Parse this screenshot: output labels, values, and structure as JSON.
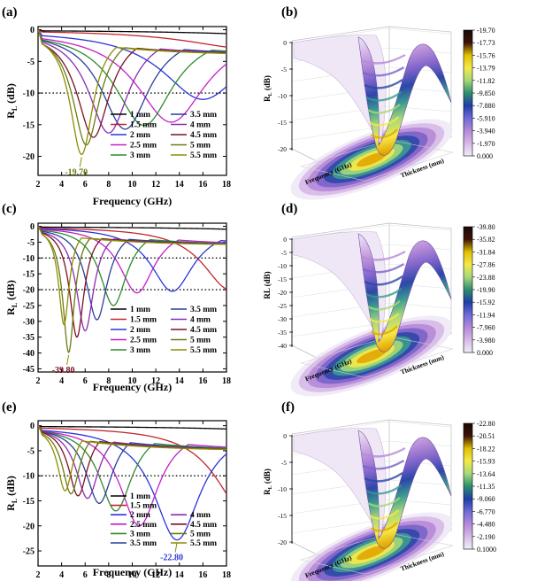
{
  "figure": {
    "description_hidden": false
  },
  "colors": {
    "series": [
      "#000000",
      "#c0272d",
      "#2b35d6",
      "#c21fc9",
      "#2e8b2e",
      "#2a3f9a",
      "#8b2bb5",
      "#7b1022",
      "#6a7a12",
      "#8d8d00"
    ],
    "colorbar": [
      "#1a0a05",
      "#3d1208",
      "#e0c000",
      "#f4e94a",
      "#a6d87a",
      "#2e8e6e",
      "#1f3ea6",
      "#6e6ad9",
      "#b48ad8",
      "#d7b9e8",
      "#eef0f7"
    ],
    "surface_bands": [
      "#efe9f6",
      "#d7b9e8",
      "#b58ad8",
      "#7c63c9",
      "#2d47a8",
      "#3a9b8f",
      "#a6d87a",
      "#f4e94a",
      "#e2a500"
    ],
    "reference_line": "#000000"
  },
  "chart_data": [
    {
      "panel": "(a)",
      "type": "line",
      "xlabel": "Frequency (GHz)",
      "ylabel_main": "R",
      "ylabel_sub": "L",
      "ylabel_unit": "(dB)",
      "xlim": [
        2,
        18
      ],
      "ylim": [
        -23,
        0.5
      ],
      "xticks": [
        "2",
        "4",
        "6",
        "8",
        "10",
        "12",
        "14",
        "16",
        "18"
      ],
      "yticks": [
        "0",
        "-5",
        "-10",
        "-15",
        "-20"
      ],
      "reference_line": -10,
      "min_label": "-19.70",
      "min_point": [
        5.7,
        -19.7
      ],
      "legend_col1": [
        "1 mm",
        "1.5 mm",
        "2 mm",
        "2.5 mm",
        "3 mm"
      ],
      "legend_col2": [
        "3.5 mm",
        "4 mm",
        "4.5 mm",
        "5 mm",
        "5.5 mm"
      ],
      "series": [
        {
          "name": "1 mm",
          "fmin": 30,
          "depth": -1.5,
          "width": 10,
          "tail": 0
        },
        {
          "name": "1.5 mm",
          "fmin": 20,
          "depth": -3.0,
          "width": 6.5,
          "tail": 0
        },
        {
          "name": "2 mm",
          "fmin": 16.0,
          "depth": -11.0,
          "width": 4.2,
          "tail": -4
        },
        {
          "name": "2.5 mm",
          "fmin": 13.3,
          "depth": -14.6,
          "width": 3.6,
          "tail": -4
        },
        {
          "name": "3 mm",
          "fmin": 11.0,
          "depth": -15.1,
          "width": 3.0,
          "tail": -4
        },
        {
          "name": "3.5 mm",
          "fmin": 9.4,
          "depth": -15.7,
          "width": 2.5,
          "tail": -4
        },
        {
          "name": "4 mm",
          "fmin": 8.0,
          "depth": -16.3,
          "width": 2.1,
          "tail": -4
        },
        {
          "name": "4.5 mm",
          "fmin": 6.7,
          "depth": -17.0,
          "width": 1.7,
          "tail": -4
        },
        {
          "name": "5 mm",
          "fmin": 6.1,
          "depth": -18.2,
          "width": 1.4,
          "tail": -4
        },
        {
          "name": "5.5 mm",
          "fmin": 5.7,
          "depth": -19.7,
          "width": 1.2,
          "tail": -4
        }
      ]
    },
    {
      "panel": "(c)",
      "type": "line",
      "xlabel": "Frequency (GHz)",
      "ylabel_main": "R",
      "ylabel_sub": "L",
      "ylabel_unit": "(dB)",
      "xlim": [
        2,
        18
      ],
      "ylim": [
        -46,
        1
      ],
      "xticks": [
        "2",
        "4",
        "6",
        "8",
        "10",
        "12",
        "14",
        "16",
        "18"
      ],
      "yticks": [
        "0",
        "-5",
        "-10",
        "-15",
        "-20",
        "-25",
        "-30",
        "-35",
        "-40",
        "-45"
      ],
      "reference_lines": [
        -10,
        -20
      ],
      "min_label": "-39.80",
      "min_point": [
        4.6,
        -39.8
      ],
      "legend_col1": [
        "1 mm",
        "1.5 mm",
        "2 mm",
        "2.5 mm",
        "3 mm"
      ],
      "legend_col2": [
        "3.5 mm",
        "4 mm",
        "4.5 mm",
        "5 mm",
        "5.5 mm"
      ],
      "series": [
        {
          "name": "1 mm",
          "fmin": 30,
          "depth": -2.5,
          "width": 9,
          "tail": 0
        },
        {
          "name": "1.5 mm",
          "fmin": 18.3,
          "depth": -20.0,
          "width": 2.8,
          "tail": -6
        },
        {
          "name": "2 mm",
          "fmin": 13.4,
          "depth": -20.5,
          "width": 2.2,
          "tail": -6
        },
        {
          "name": "2.5 mm",
          "fmin": 10.4,
          "depth": -21.0,
          "width": 1.8,
          "tail": -6
        },
        {
          "name": "3 mm",
          "fmin": 8.4,
          "depth": -25.0,
          "width": 1.4,
          "tail": -6
        },
        {
          "name": "3.5 mm",
          "fmin": 7.0,
          "depth": -29.5,
          "width": 1.1,
          "tail": -6
        },
        {
          "name": "4 mm",
          "fmin": 6.0,
          "depth": -33.0,
          "width": 0.9,
          "tail": -6
        },
        {
          "name": "4.5 mm",
          "fmin": 5.3,
          "depth": -35.0,
          "width": 0.75,
          "tail": -6
        },
        {
          "name": "5 mm",
          "fmin": 4.6,
          "depth": -39.8,
          "width": 0.6,
          "tail": -6
        },
        {
          "name": "5.5 mm",
          "fmin": 4.2,
          "depth": -31.0,
          "width": 0.55,
          "tail": -6
        }
      ]
    },
    {
      "panel": "(e)",
      "type": "line",
      "xlabel": "Frequency (GHz)",
      "ylabel_main": "R",
      "ylabel_sub": "L",
      "ylabel_unit": "(dB)",
      "xlim": [
        2,
        18
      ],
      "ylim": [
        -28,
        1
      ],
      "xticks": [
        "2",
        "4",
        "6",
        "8",
        "10",
        "12",
        "14",
        "16",
        "18"
      ],
      "yticks": [
        "0",
        "-5",
        "-10",
        "-15",
        "-20",
        "-25"
      ],
      "reference_line": -10,
      "min_label": "-22.80",
      "min_point": [
        13.8,
        -22.8
      ],
      "legend_col1": [
        "1 mm",
        "1.5 mm",
        "2 mm",
        "2.5 mm",
        "3 mm",
        "3.5 mm"
      ],
      "legend_col2": [
        "4 mm",
        "4.5 mm",
        "5 mm",
        "5.5 mm"
      ],
      "series": [
        {
          "name": "1 mm",
          "fmin": 30,
          "depth": -1.8,
          "width": 9,
          "tail": 0
        },
        {
          "name": "1.5 mm",
          "fmin": 19.5,
          "depth": -17.0,
          "width": 3.0,
          "tail": -5
        },
        {
          "name": "2 mm",
          "fmin": 13.8,
          "depth": -22.8,
          "width": 2.4,
          "tail": -5
        },
        {
          "name": "2.5 mm",
          "fmin": 10.6,
          "depth": -20.0,
          "width": 2.0,
          "tail": -5
        },
        {
          "name": "3 mm",
          "fmin": 8.6,
          "depth": -17.0,
          "width": 1.7,
          "tail": -5
        },
        {
          "name": "3.5 mm",
          "fmin": 7.2,
          "depth": -15.5,
          "width": 1.4,
          "tail": -5
        },
        {
          "name": "4 mm",
          "fmin": 6.2,
          "depth": -14.5,
          "width": 1.2,
          "tail": -5
        },
        {
          "name": "4.5 mm",
          "fmin": 5.4,
          "depth": -14.0,
          "width": 1.0,
          "tail": -5
        },
        {
          "name": "5 mm",
          "fmin": 4.8,
          "depth": -13.6,
          "width": 0.9,
          "tail": -5
        },
        {
          "name": "5.5 mm",
          "fmin": 4.3,
          "depth": -13.0,
          "width": 0.8,
          "tail": -5
        }
      ]
    },
    {
      "panel": "(b)",
      "type": "surface3d",
      "zlabel": "R",
      "zlabel_sub": "L",
      "zlabel_unit": "(dB)",
      "xlabel": "Frequency (GHz)",
      "ylabel": "Thickness (mm)",
      "zticks": [
        "0",
        "-5",
        "-10",
        "-15",
        "-20"
      ],
      "colorbar_labels": [
        "-19.70",
        "-17.73",
        "-15.76",
        "-13.79",
        "-11.82",
        "-9.850",
        "-7.880",
        "-5.910",
        "-3.940",
        "-1.970",
        "0.000"
      ]
    },
    {
      "panel": "(d)",
      "type": "surface3d",
      "zlabel": "RL",
      "zlabel_sub": "",
      "zlabel_unit": "(dB)",
      "xlabel": "Frequency (GHz)",
      "ylabel": "Thickness (mm)",
      "zticks": [
        "0",
        "-5",
        "-10",
        "-15",
        "-20",
        "-25",
        "-30",
        "-35",
        "-40"
      ],
      "colorbar_labels": [
        "-39.80",
        "-35.82",
        "-31.84",
        "-27.86",
        "-23.88",
        "-19.90",
        "-15.92",
        "-11.94",
        "-7.960",
        "-3.980",
        "0.000"
      ]
    },
    {
      "panel": "(f)",
      "type": "surface3d",
      "zlabel": "R",
      "zlabel_sub": "L",
      "zlabel_unit": "(dB)",
      "xlabel": "Frequency (GHz)",
      "ylabel": "Thickness (mm)",
      "zticks": [
        "0",
        "-5",
        "-10",
        "-15",
        "-20"
      ],
      "colorbar_labels": [
        "-22.80",
        "-20.51",
        "-18.22",
        "-15.93",
        "-13.64",
        "-11.35",
        "-9.060",
        "-6.770",
        "-4.480",
        "-2.190",
        "0.1000"
      ]
    }
  ]
}
